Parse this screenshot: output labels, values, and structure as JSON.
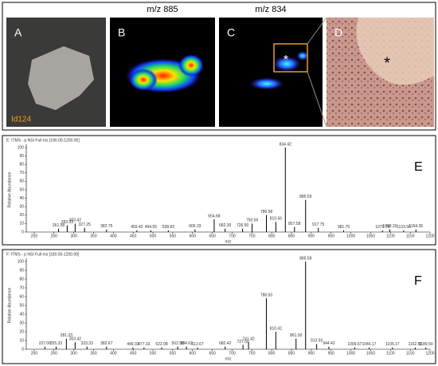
{
  "panels": {
    "a": {
      "label": "A",
      "caption": "Id124"
    },
    "b": {
      "label": "B",
      "title": "m/z 885"
    },
    "c": {
      "label": "C",
      "title": "m/z 834",
      "marker": "*"
    },
    "d": {
      "label": "D",
      "marker": "*"
    }
  },
  "chart_data": [
    {
      "type": "spectrum",
      "panel": "E",
      "header": "E: ITMS - p NSI Full ms [180.00-1200.00]",
      "y_label": "Relative Abundance",
      "x_label": "m/z",
      "x": [
        261.58,
        283.33,
        303.42,
        327.25,
        382.75,
        459.42,
        494.55,
        538.83,
        606.33,
        654.68,
        682.3,
        726.5,
        750.56,
        786.58,
        810.56,
        834.42,
        857.58,
        885.59,
        917.75,
        981.75,
        1079.75,
        1098.33,
        1133.5,
        1164.35
      ],
      "peak_labels": [
        "261.58",
        "283.33",
        "303.42",
        "327.25",
        "382.75",
        "459.42",
        "494.55",
        "538.83",
        "606.33",
        "654.68",
        "682.30",
        "726.50",
        "750.56",
        "786.58",
        "810.56",
        "834.42",
        "857.58",
        "885.59",
        "917.75",
        "981.75",
        "1079.75",
        "1098.33",
        "1133.50",
        "1164.35"
      ],
      "values": [
        4,
        8,
        10,
        5,
        3,
        2,
        2,
        2,
        3,
        15,
        4,
        4,
        10,
        20,
        12,
        100,
        6,
        38,
        5,
        2,
        2,
        3,
        2,
        3
      ],
      "color": "#000000",
      "xlim": [
        180,
        1200
      ],
      "ylim": [
        0,
        100
      ],
      "xticks": [
        200,
        250,
        300,
        350,
        400,
        450,
        500,
        550,
        600,
        650,
        700,
        750,
        800,
        850,
        900,
        950,
        1000,
        1050,
        1100,
        1150,
        1200
      ],
      "yticks": [
        0,
        10,
        20,
        30,
        40,
        50,
        60,
        70,
        80,
        90,
        100
      ]
    },
    {
      "type": "spectrum",
      "panel": "F",
      "header": "F: ITMS - p NSI Full ms [180.00-1200.00]",
      "y_label": "Relative Abundance",
      "x_label": "m/z",
      "x": [
        227.0,
        255.33,
        281.33,
        303.42,
        333.33,
        382.67,
        449.33,
        477.33,
        522.08,
        562.58,
        584.63,
        612.67,
        682.42,
        727.5,
        741.42,
        786.5,
        810.42,
        861.5,
        885.58,
        913.5,
        944.42,
        1009.67,
        1046.17,
        1105.17,
        1162.5,
        1189.5
      ],
      "peak_labels": [
        "227.00",
        "255.33",
        "281.33",
        "303.42",
        "333.33",
        "382.67",
        "449.33",
        "477.33",
        "522.08",
        "562.58",
        "584.63",
        "612.67",
        "682.42",
        "727.50",
        "741.42",
        "786.50",
        "810.42",
        "861.50",
        "885.58",
        "913.50",
        "944.42",
        "1009.67",
        "1046.17",
        "1105.17",
        "1162.50",
        "1189.50"
      ],
      "values": [
        3,
        3,
        12,
        8,
        3,
        3,
        2,
        2,
        2,
        3,
        3,
        2,
        3,
        5,
        8,
        58,
        20,
        12,
        100,
        6,
        3,
        2,
        2,
        2,
        2,
        2
      ],
      "color": "#000000",
      "xlim": [
        180,
        1200
      ],
      "ylim": [
        0,
        100
      ],
      "xticks": [
        200,
        250,
        300,
        350,
        400,
        450,
        500,
        550,
        600,
        650,
        700,
        750,
        800,
        850,
        900,
        950,
        1000,
        1050,
        1100,
        1150,
        1200
      ],
      "yticks": [
        0,
        10,
        20,
        30,
        40,
        50,
        60,
        70,
        80,
        90,
        100
      ]
    }
  ]
}
